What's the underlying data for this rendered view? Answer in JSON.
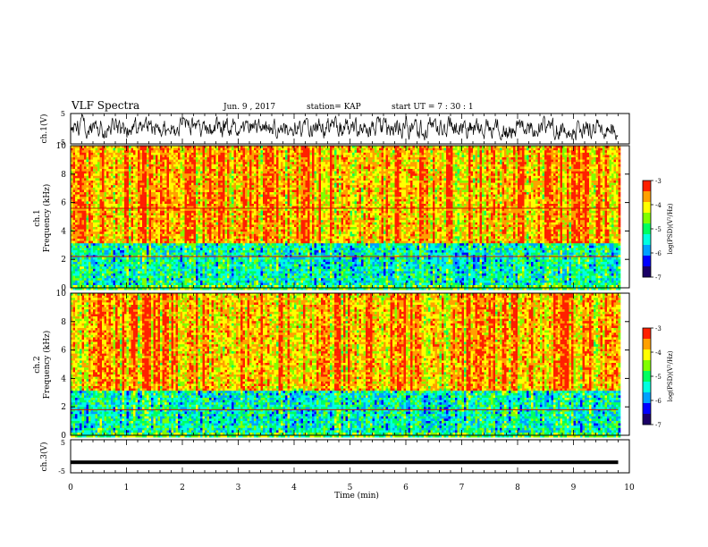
{
  "header": {
    "title": "VLF Spectra",
    "date": "Jun. 9 , 2017",
    "station": "station= KAP",
    "start": "start UT =  7 : 30 : 1"
  },
  "chart_data": {
    "type": "heatmap",
    "title": "VLF Spectra",
    "xlabel": "Time (min)",
    "xlim": [
      0,
      10
    ],
    "x_ticks": [
      "0",
      "1",
      "2",
      "3",
      "4",
      "5",
      "6",
      "7",
      "8",
      "9",
      "10"
    ],
    "panels": [
      {
        "id": "ch1-waveform",
        "type": "line",
        "ylabel": "ch.1(V)",
        "ylim": [
          -5,
          5
        ],
        "y_ticks": [
          "5",
          "-5"
        ],
        "x_data_end": 9.8,
        "series_color": "#000000",
        "amplitude_approx": 3
      },
      {
        "id": "ch1-spectrogram",
        "type": "heatmap",
        "ylabel_line1": "ch.1",
        "ylabel_line2": "Frequency (kHz)",
        "ylim": [
          0,
          10
        ],
        "y_ticks": [
          "0",
          "2",
          "4",
          "6",
          "8",
          "10"
        ],
        "x_data_end": 9.8,
        "colorbar": {
          "label": "log(PSD)(V²/Hz)",
          "range": [
            -7,
            -3
          ],
          "ticks": [
            "-3",
            "-4",
            "-5",
            "-6",
            "-7"
          ]
        },
        "features": {
          "low_band_khz": [
            0.3,
            3.2
          ],
          "steady_lines_khz": [
            2.2,
            5.6
          ],
          "high_band_khz": [
            3.2,
            10
          ]
        }
      },
      {
        "id": "ch2-spectrogram",
        "type": "heatmap",
        "ylabel_line1": "ch.2",
        "ylabel_line2": "Frequency (kHz)",
        "ylim": [
          0,
          10
        ],
        "y_ticks": [
          "0",
          "2",
          "4",
          "6",
          "8",
          "10"
        ],
        "x_data_end": 9.8,
        "colorbar": {
          "label": "log(PSD)(V²/Hz)",
          "range": [
            -7,
            -3
          ],
          "ticks": [
            "-3",
            "-4",
            "-5",
            "-6",
            "-7"
          ]
        },
        "features": {
          "low_band_khz": [
            0.3,
            3.2
          ],
          "steady_lines_khz": [
            1.8
          ],
          "high_band_khz": [
            3.2,
            10
          ]
        }
      },
      {
        "id": "ch3-waveform",
        "type": "line",
        "ylabel": "ch.3(V)",
        "ylim": [
          -5,
          5
        ],
        "y_ticks": [
          "5",
          "-5"
        ],
        "x_data_end": 9.8,
        "series_color": "#000000",
        "constant_value_approx": -1.8
      }
    ],
    "colors": {
      "colormap": [
        "#1a0066",
        "#0000ff",
        "#00a0ff",
        "#00ffe0",
        "#00ff60",
        "#80ff00",
        "#ffff00",
        "#ffa000",
        "#ff2000"
      ]
    }
  }
}
